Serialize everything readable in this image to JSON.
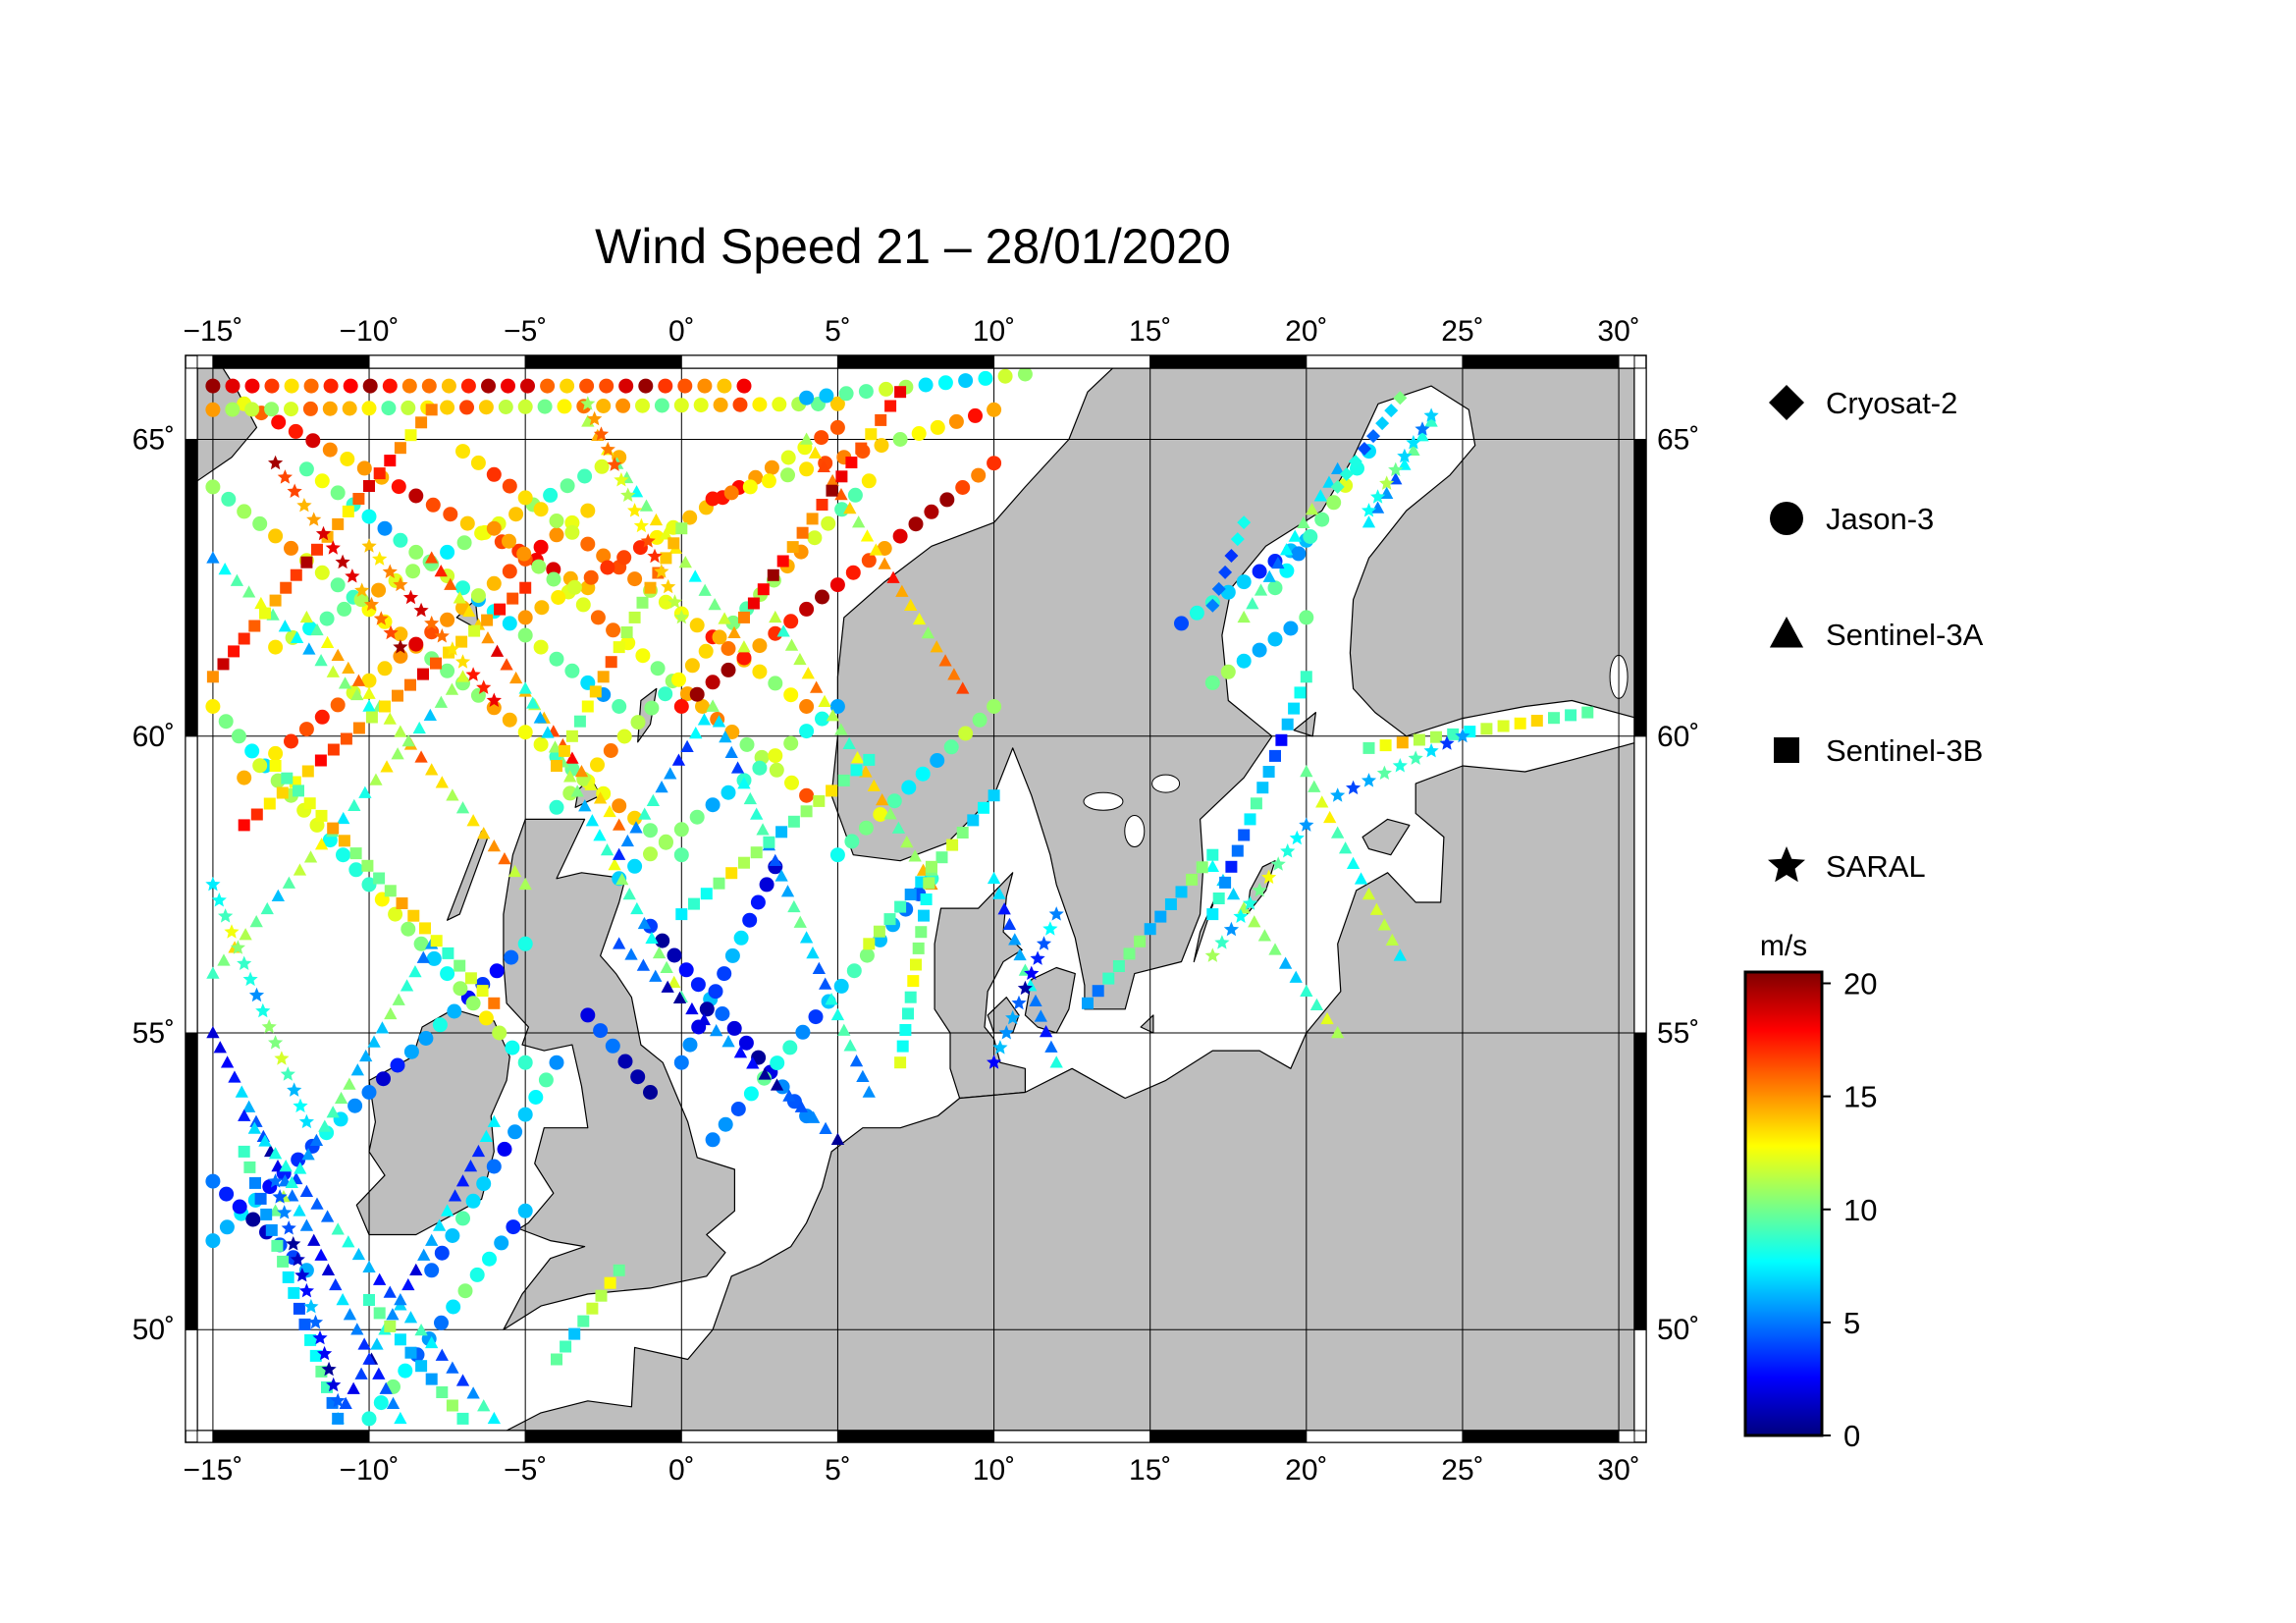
{
  "title": "Wind Speed 21 – 28/01/2020",
  "map": {
    "lon_range": [
      -15.5,
      30.5
    ],
    "lat_range": [
      48.3,
      66.2
    ],
    "lon_ticks": [
      -15,
      -10,
      -5,
      0,
      5,
      10,
      15,
      20,
      25,
      30
    ],
    "lat_ticks": [
      50,
      55,
      60,
      65
    ],
    "lon_labels": [
      "−15˚",
      "−10˚",
      "−5˚",
      "0˚",
      "5˚",
      "10˚",
      "15˚",
      "20˚",
      "25˚",
      "30˚"
    ],
    "lat_labels": [
      "50˚",
      "55˚",
      "60˚",
      "65˚"
    ],
    "grid": true,
    "land_color": "#bebebe",
    "sea_color": "#ffffff"
  },
  "legend": {
    "items": [
      {
        "label": "Cryosat-2",
        "symbol": "diamond-icon"
      },
      {
        "label": "Jason-3",
        "symbol": "circle-icon"
      },
      {
        "label": "Sentinel-3A",
        "symbol": "triangle-icon"
      },
      {
        "label": "Sentinel-3B",
        "symbol": "square-icon"
      },
      {
        "label": "SARAL",
        "symbol": "star-icon"
      }
    ]
  },
  "colorbar": {
    "unit": "m/s",
    "min": 0,
    "max": 20.5,
    "ticks": [
      0,
      5,
      10,
      15,
      20
    ],
    "tick_labels": [
      "0",
      "5",
      "10",
      "15",
      "20"
    ],
    "colors": [
      "#00007f",
      "#0000ff",
      "#007fff",
      "#00ffff",
      "#7fff7f",
      "#ffff00",
      "#ff7f00",
      "#ff0000",
      "#7f0000"
    ]
  },
  "tracks": [
    {
      "sat": "circle",
      "from": [
        -15,
        51.5
      ],
      "to": [
        -5,
        56.5
      ],
      "speed": 5
    },
    {
      "sat": "circle",
      "from": [
        -15,
        60.5
      ],
      "to": [
        -5,
        54.5
      ],
      "speed": 10
    },
    {
      "sat": "circle",
      "from": [
        -15,
        64.2
      ],
      "to": [
        0,
        58.0
      ],
      "speed": 12
    },
    {
      "sat": "circle",
      "from": [
        -14,
        65.6
      ],
      "to": [
        -3,
        62.5
      ],
      "speed": 16
    },
    {
      "sat": "circle",
      "from": [
        -12,
        64.5
      ],
      "to": [
        -2,
        60.5
      ],
      "speed": 9
    },
    {
      "sat": "circle",
      "from": [
        -13,
        61.5
      ],
      "to": [
        -2,
        64.7
      ],
      "speed": 11
    },
    {
      "sat": "circle",
      "from": [
        -14,
        59.3
      ],
      "to": [
        -3,
        63.8
      ],
      "speed": 15
    },
    {
      "sat": "circle",
      "from": [
        -7,
        64.8
      ],
      "to": [
        4,
        60.5
      ],
      "speed": 14
    },
    {
      "sat": "circle",
      "from": [
        -6,
        63.5
      ],
      "to": [
        4,
        59.0
      ],
      "speed": 13
    },
    {
      "sat": "circle",
      "from": [
        -5,
        62.0
      ],
      "to": [
        5,
        65.2
      ],
      "speed": 15
    },
    {
      "sat": "circle",
      "from": [
        -4,
        58.8
      ],
      "to": [
        6,
        64.3
      ],
      "speed": 12
    },
    {
      "sat": "circle",
      "from": [
        0,
        60.5
      ],
      "to": [
        10,
        64.6
      ],
      "speed": 18
    },
    {
      "sat": "circle",
      "from": [
        1,
        64.0
      ],
      "to": [
        10,
        65.5
      ],
      "speed": 14
    },
    {
      "sat": "circle",
      "from": [
        -1,
        56.8
      ],
      "to": [
        4,
        53.6
      ],
      "speed": 3
    },
    {
      "sat": "circle",
      "from": [
        -2,
        57.6
      ],
      "to": [
        5,
        60.5
      ],
      "speed": 9
    },
    {
      "sat": "circle",
      "from": [
        -3,
        55.3
      ],
      "to": [
        -1,
        54.0
      ],
      "speed": 2
    },
    {
      "sat": "circle",
      "from": [
        0,
        54.5
      ],
      "to": [
        3,
        57.8
      ],
      "speed": 4
    },
    {
      "sat": "circle",
      "from": [
        1,
        53.2
      ],
      "to": [
        8,
        57.6
      ],
      "speed": 7
    },
    {
      "sat": "circle",
      "from": [
        5,
        58.0
      ],
      "to": [
        10,
        60.5
      ],
      "speed": 9
    },
    {
      "sat": "circle",
      "from": [
        -15,
        65.9
      ],
      "to": [
        2,
        65.9
      ],
      "speed": 17
    },
    {
      "sat": "circle",
      "from": [
        -15,
        65.5
      ],
      "to": [
        5,
        65.6
      ],
      "speed": 13
    },
    {
      "sat": "circle",
      "from": [
        4,
        65.7
      ],
      "to": [
        11,
        66.1
      ],
      "speed": 9
    },
    {
      "sat": "circle",
      "from": [
        16,
        61.9
      ],
      "to": [
        20,
        63.3
      ],
      "speed": 6
    },
    {
      "sat": "circle",
      "from": [
        17,
        60.9
      ],
      "to": [
        20,
        62.0
      ],
      "speed": 8
    },
    {
      "sat": "circle",
      "from": [
        19,
        62.5
      ],
      "to": [
        22,
        64.8
      ],
      "speed": 9
    },
    {
      "sat": "circle",
      "from": [
        -8,
        51.0
      ],
      "to": [
        -4,
        54.5
      ],
      "speed": 6
    },
    {
      "sat": "circle",
      "from": [
        -10,
        48.5
      ],
      "to": [
        -5,
        52.0
      ],
      "speed": 7
    },
    {
      "sat": "circle",
      "from": [
        -15,
        52.5
      ],
      "to": [
        -12,
        51.0
      ],
      "speed": 3
    },
    {
      "sat": "triangle",
      "from": [
        -15,
        55.0
      ],
      "to": [
        -9,
        48.5
      ],
      "speed": 4
    },
    {
      "sat": "triangle",
      "from": [
        -14,
        53.6
      ],
      "to": [
        -6,
        48.5
      ],
      "speed": 6
    },
    {
      "sat": "triangle",
      "from": [
        -13,
        52.0
      ],
      "to": [
        -8,
        56.5
      ],
      "speed": 8
    },
    {
      "sat": "triangle",
      "from": [
        -11,
        48.5
      ],
      "to": [
        -6,
        53.5
      ],
      "speed": 5
    },
    {
      "sat": "triangle",
      "from": [
        -12,
        62.0
      ],
      "to": [
        -5,
        57.5
      ],
      "speed": 13
    },
    {
      "sat": "triangle",
      "from": [
        -15,
        56.0
      ],
      "to": [
        -7,
        61.0
      ],
      "speed": 10
    },
    {
      "sat": "triangle",
      "from": [
        -8,
        63.0
      ],
      "to": [
        -2,
        58.5
      ],
      "speed": 15
    },
    {
      "sat": "triangle",
      "from": [
        -5,
        60.8
      ],
      "to": [
        0,
        55.6
      ],
      "speed": 9
    },
    {
      "sat": "triangle",
      "from": [
        -2,
        58.0
      ],
      "to": [
        1,
        60.5
      ],
      "speed": 6
    },
    {
      "sat": "triangle",
      "from": [
        -2,
        56.5
      ],
      "to": [
        5,
        53.2
      ],
      "speed": 3
    },
    {
      "sat": "triangle",
      "from": [
        1,
        60.5
      ],
      "to": [
        6,
        54.0
      ],
      "speed": 7
    },
    {
      "sat": "triangle",
      "from": [
        3,
        62.0
      ],
      "to": [
        8,
        57.5
      ],
      "speed": 12
    },
    {
      "sat": "triangle",
      "from": [
        4,
        65.0
      ],
      "to": [
        9,
        60.8
      ],
      "speed": 14
    },
    {
      "sat": "triangle",
      "from": [
        -3,
        65.3
      ],
      "to": [
        2,
        61.5
      ],
      "speed": 11
    },
    {
      "sat": "triangle",
      "from": [
        10,
        57.6
      ],
      "to": [
        12,
        54.5
      ],
      "speed": 6
    },
    {
      "sat": "triangle",
      "from": [
        17,
        57.8
      ],
      "to": [
        21,
        55.0
      ],
      "speed": 9
    },
    {
      "sat": "triangle",
      "from": [
        20,
        59.4
      ],
      "to": [
        23,
        56.3
      ],
      "speed": 10
    },
    {
      "sat": "triangle",
      "from": [
        18,
        62.0
      ],
      "to": [
        21,
        64.5
      ],
      "speed": 8
    },
    {
      "sat": "triangle",
      "from": [
        22,
        63.6
      ],
      "to": [
        24,
        65.3
      ],
      "speed": 7
    },
    {
      "sat": "triangle",
      "from": [
        -15,
        63.0
      ],
      "to": [
        -10,
        60.5
      ],
      "speed": 9
    },
    {
      "sat": "square",
      "from": [
        -15,
        61.0
      ],
      "to": [
        -8,
        65.5
      ],
      "speed": 16
    },
    {
      "sat": "square",
      "from": [
        -14,
        58.5
      ],
      "to": [
        -5,
        62.5
      ],
      "speed": 15
    },
    {
      "sat": "square",
      "from": [
        -13,
        59.5
      ],
      "to": [
        -6,
        55.5
      ],
      "speed": 12
    },
    {
      "sat": "square",
      "from": [
        -11,
        48.5
      ],
      "to": [
        -14,
        53.0
      ],
      "speed": 7
    },
    {
      "sat": "square",
      "from": [
        -10,
        50.5
      ],
      "to": [
        -7,
        48.5
      ],
      "speed": 8
    },
    {
      "sat": "square",
      "from": [
        -4,
        59.5
      ],
      "to": [
        0,
        63.5
      ],
      "speed": 13
    },
    {
      "sat": "square",
      "from": [
        0,
        57.0
      ],
      "to": [
        6,
        59.6
      ],
      "speed": 10
    },
    {
      "sat": "square",
      "from": [
        2,
        62.0
      ],
      "to": [
        7,
        65.8
      ],
      "speed": 17
    },
    {
      "sat": "square",
      "from": [
        6,
        56.5
      ],
      "to": [
        10,
        59.0
      ],
      "speed": 9
    },
    {
      "sat": "square",
      "from": [
        7,
        54.5
      ],
      "to": [
        8,
        57.8
      ],
      "speed": 10
    },
    {
      "sat": "square",
      "from": [
        13,
        55.5
      ],
      "to": [
        17,
        58.0
      ],
      "speed": 8
    },
    {
      "sat": "square",
      "from": [
        22,
        59.8
      ],
      "to": [
        29,
        60.4
      ],
      "speed": 11
    },
    {
      "sat": "square",
      "from": [
        17,
        57.0
      ],
      "to": [
        20,
        61.0
      ],
      "speed": 6
    },
    {
      "sat": "square",
      "from": [
        -4,
        49.5
      ],
      "to": [
        -2,
        51.0
      ],
      "speed": 10
    },
    {
      "sat": "star",
      "from": [
        -15,
        57.5
      ],
      "to": [
        -12,
        53.5
      ],
      "speed": 9
    },
    {
      "sat": "star",
      "from": [
        -13,
        52.5
      ],
      "to": [
        -11,
        48.8
      ],
      "speed": 3
    },
    {
      "sat": "star",
      "from": [
        -13,
        64.6
      ],
      "to": [
        -9,
        61.5
      ],
      "speed": 17
    },
    {
      "sat": "star",
      "from": [
        -10,
        63.2
      ],
      "to": [
        -6,
        60.6
      ],
      "speed": 16
    },
    {
      "sat": "star",
      "from": [
        -3,
        65.6
      ],
      "to": [
        0,
        62.0
      ],
      "speed": 14
    },
    {
      "sat": "star",
      "from": [
        12,
        57.0
      ],
      "to": [
        10,
        54.5
      ],
      "speed": 4
    },
    {
      "sat": "star",
      "from": [
        17,
        56.3
      ],
      "to": [
        20,
        58.5
      ],
      "speed": 9
    },
    {
      "sat": "star",
      "from": [
        21,
        59.0
      ],
      "to": [
        25,
        60.0
      ],
      "speed": 7
    },
    {
      "sat": "star",
      "from": [
        22,
        63.8
      ],
      "to": [
        24,
        65.4
      ],
      "speed": 8
    },
    {
      "sat": "diamond",
      "from": [
        21,
        64.2
      ],
      "to": [
        23,
        65.7
      ],
      "speed": 7
    },
    {
      "sat": "diamond",
      "from": [
        17,
        62.2
      ],
      "to": [
        18,
        63.6
      ],
      "speed": 6
    }
  ]
}
